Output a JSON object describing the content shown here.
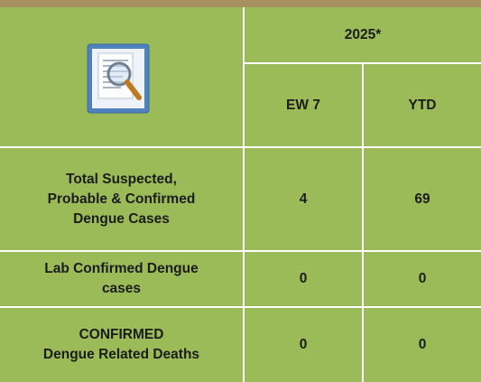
{
  "table": {
    "header": {
      "year": "2025*",
      "columns": [
        "EW 7",
        "YTD"
      ]
    },
    "rows": [
      {
        "label_lines": [
          "Total Suspected,",
          "Probable & Confirmed",
          "Dengue Cases"
        ],
        "values": [
          4,
          69
        ]
      },
      {
        "label_lines": [
          "Lab Confirmed Dengue",
          "cases"
        ],
        "values": [
          0,
          0
        ]
      },
      {
        "label_lines": [
          "CONFIRMED",
          "Dengue Related Deaths"
        ],
        "values": [
          0,
          0
        ]
      }
    ]
  }
}
